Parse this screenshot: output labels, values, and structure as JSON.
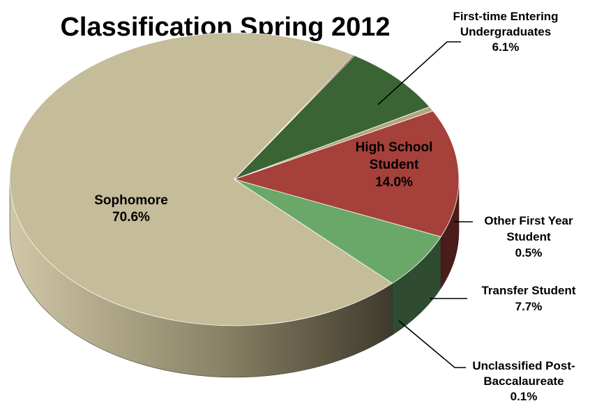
{
  "chart_data": {
    "type": "pie",
    "title": "Classification Spring 2012",
    "slices": [
      {
        "name": "Sophomore",
        "label_lines": [
          "Sophomore"
        ],
        "value": 70.6,
        "value_label": "70.6%",
        "color": "#c5bc9a"
      },
      {
        "name": "First-time Entering Undergraduates",
        "label_lines": [
          "First-time Entering",
          "Undergraduates"
        ],
        "value": 6.1,
        "value_label": "6.1%",
        "color": "#6aa86a"
      },
      {
        "name": "High School Student",
        "label_lines": [
          "High School",
          "Student"
        ],
        "value": 14.0,
        "value_label": "14.0%",
        "color": "#a6403a"
      },
      {
        "name": "Other First Year Student",
        "label_lines": [
          "Other First Year",
          "Student"
        ],
        "value": 0.5,
        "value_label": "0.5%",
        "color": "#b3a47c"
      },
      {
        "name": "Transfer Student",
        "label_lines": [
          "Transfer Student"
        ],
        "value": 7.7,
        "value_label": "7.7%",
        "color": "#3b6434"
      },
      {
        "name": "Unclassified Post-Baccalaureate",
        "label_lines": [
          "Unclassified Post-",
          "Baccalaureate"
        ],
        "value": 0.1,
        "value_label": "0.1%",
        "color": "#6b1c1c"
      }
    ],
    "style": "3d-pie",
    "legend": "none"
  }
}
